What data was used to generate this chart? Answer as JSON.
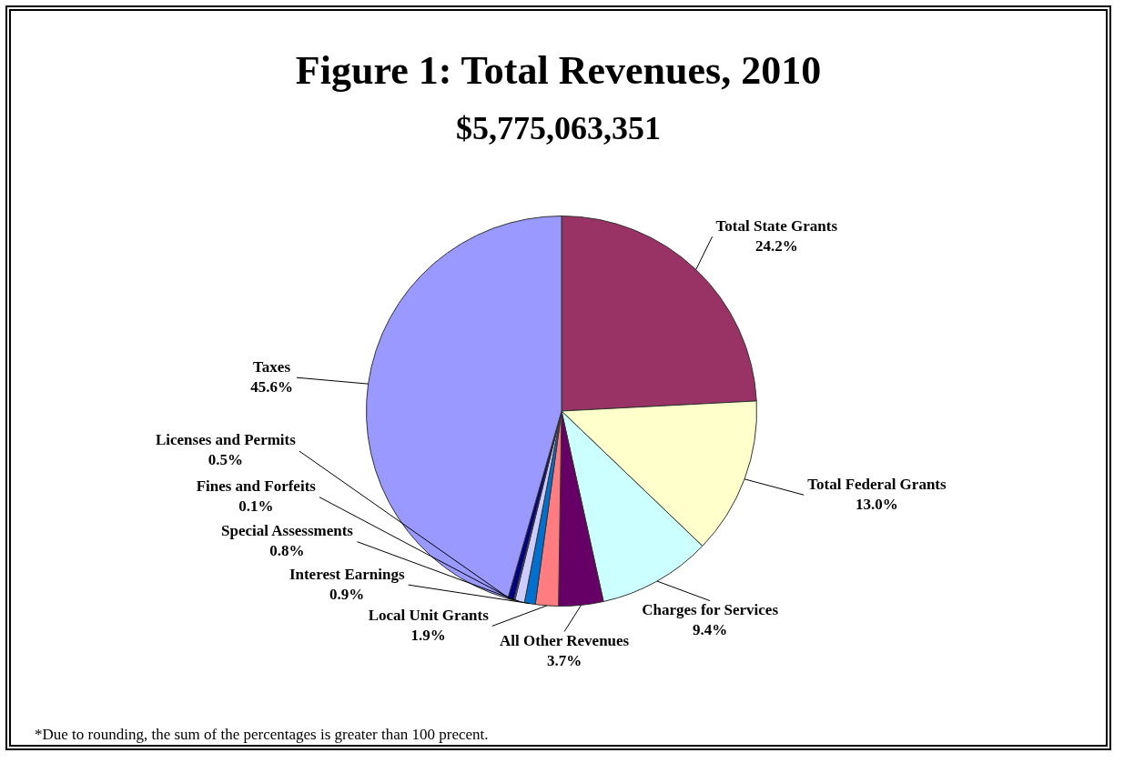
{
  "chart_data": {
    "type": "pie",
    "title": "Figure 1: Total Revenues, 2010",
    "subtitle": "$5,775,063,351",
    "categories": [
      "Total State Grants",
      "Total Federal Grants",
      "Charges for Services",
      "All Other Revenues",
      "Local Unit Grants",
      "Interest Earnings",
      "Special Assessments",
      "Fines and Forfeits",
      "Licenses and Permits",
      "Taxes"
    ],
    "values": [
      24.2,
      13.0,
      9.4,
      3.7,
      1.9,
      0.9,
      0.8,
      0.1,
      0.5,
      45.6
    ],
    "value_labels": [
      "24.2%",
      "13.0%",
      "9.4%",
      "3.7%",
      "1.9%",
      "0.9%",
      "0.8%",
      "0.1%",
      "0.5%",
      "45.6%"
    ],
    "colors": [
      "#993366",
      "#ffffcc",
      "#ccffff",
      "#660066",
      "#ff7c80",
      "#0070d0",
      "#ccccff",
      "#9999b3",
      "#000080",
      "#9999ff"
    ],
    "annotations": [
      "*Due to rounding, the sum of the percentages is greater than 100 precent."
    ]
  }
}
